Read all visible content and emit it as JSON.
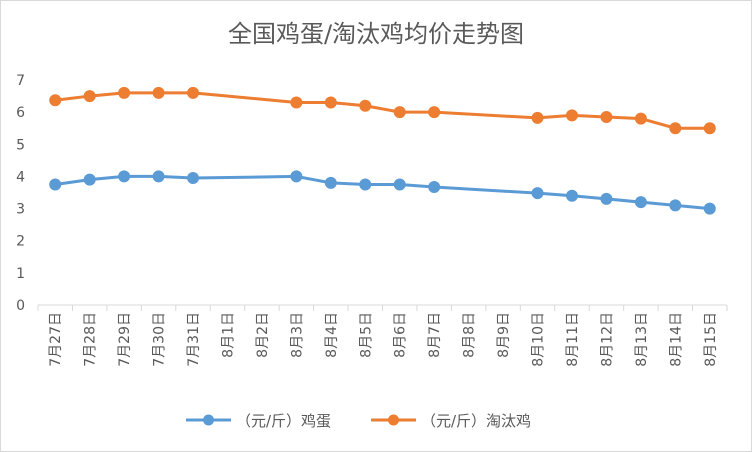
{
  "chart_data": {
    "type": "line",
    "title": "全国鸡蛋/淘汰鸡均价走势图",
    "categories": [
      "7月27日",
      "7月28日",
      "7月29日",
      "7月30日",
      "7月31日",
      "8月1日",
      "8月2日",
      "8月3日",
      "8月4日",
      "8月5日",
      "8月6日",
      "8月7日",
      "8月8日",
      "8月9日",
      "8月10日",
      "8月11日",
      "8月12日",
      "8月13日",
      "8月14日",
      "8月15日"
    ],
    "ylim": [
      0,
      7
    ],
    "yticks": [
      "0",
      "1",
      "2",
      "3",
      "4",
      "5",
      "6",
      "7"
    ],
    "series": [
      {
        "name": "（元/斤）鸡蛋",
        "color": "#5b9bd5",
        "values": [
          3.75,
          3.9,
          4.0,
          4.0,
          3.95,
          null,
          null,
          4.0,
          3.8,
          3.75,
          3.75,
          3.67,
          null,
          null,
          3.48,
          3.4,
          3.3,
          3.2,
          3.1,
          3.0
        ]
      },
      {
        "name": "（元/斤）淘汰鸡",
        "color": "#ed7d31",
        "values": [
          6.37,
          6.5,
          6.6,
          6.6,
          6.6,
          null,
          null,
          6.3,
          6.3,
          6.2,
          6.0,
          6.0,
          null,
          null,
          5.82,
          5.9,
          5.85,
          5.8,
          5.5,
          5.5
        ]
      }
    ],
    "legend": "bottom",
    "grid": false
  }
}
